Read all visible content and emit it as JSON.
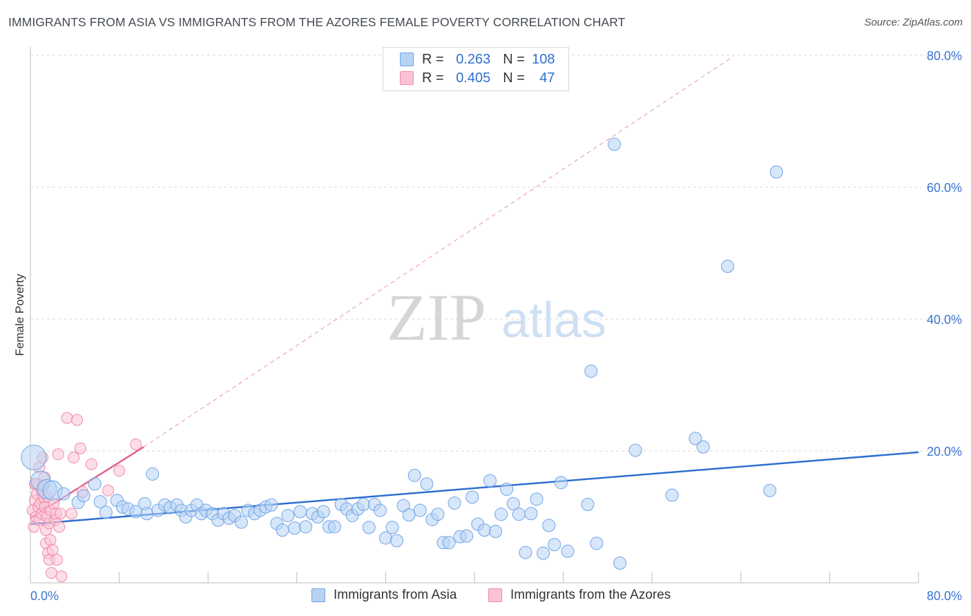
{
  "header": {
    "title": "IMMIGRANTS FROM ASIA VS IMMIGRANTS FROM THE AZORES FEMALE POVERTY CORRELATION CHART",
    "source": "Source: ZipAtlas.com"
  },
  "legend": {
    "rows": [
      {
        "r_label": "R =",
        "r_value": "0.263",
        "n_label": "N =",
        "n_value": "108",
        "color": "#6fa3e6"
      },
      {
        "r_label": "R =",
        "r_value": "0.405",
        "n_label": "N =",
        "n_value": "47",
        "color": "#f08aaa"
      }
    ]
  },
  "bottom_legend": {
    "asia": "Immigrants from Asia",
    "azores": "Immigrants from the Azores"
  },
  "watermark": {
    "zip": "ZIP",
    "atlas": "atlas"
  },
  "colors": {
    "asia_fill": "#b7d3f4",
    "asia_stroke": "#6fa3e6",
    "asia_line": "#2d6fd0",
    "azores_fill": "#f9c3d3",
    "azores_stroke": "#f08aaa",
    "azores_line": "#e06090",
    "axis_text": "#3b75d3"
  },
  "chart_data": {
    "type": "scatter",
    "title": "IMMIGRANTS FROM ASIA VS IMMIGRANTS FROM THE AZORES FEMALE POVERTY CORRELATION CHART",
    "xlabel": "",
    "ylabel": "Female Poverty",
    "xlim": [
      0,
      80
    ],
    "ylim": [
      0,
      80
    ],
    "x_ticks": [
      "0.0%",
      "80.0%"
    ],
    "y_ticks": [
      "20.0%",
      "40.0%",
      "60.0%",
      "80.0%"
    ],
    "y_tick_values": [
      20,
      40,
      60,
      80
    ],
    "grid": true,
    "legend_position": "top-center",
    "series": [
      {
        "name": "Immigrants from Asia",
        "r": 0.263,
        "n": 108,
        "trend": {
          "x": [
            0,
            80
          ],
          "y": [
            8.9,
            19.8
          ],
          "style": "solid"
        },
        "points": [
          [
            0.3,
            19.0,
            3
          ],
          [
            0.9,
            15.5,
            2
          ],
          [
            1.5,
            14.2,
            2
          ],
          [
            2.0,
            14.0,
            2
          ],
          [
            3.0,
            13.5,
            1
          ],
          [
            4.3,
            12.2,
            1
          ],
          [
            4.8,
            13.2,
            1
          ],
          [
            5.8,
            15.0,
            1
          ],
          [
            6.3,
            12.3,
            1
          ],
          [
            6.8,
            10.7,
            1
          ],
          [
            7.8,
            12.5,
            1
          ],
          [
            8.3,
            11.5,
            1
          ],
          [
            8.8,
            11.2,
            1
          ],
          [
            9.5,
            10.8,
            1
          ],
          [
            10.3,
            12.0,
            1
          ],
          [
            10.5,
            10.5,
            1
          ],
          [
            11.0,
            16.5,
            1
          ],
          [
            11.5,
            11.0,
            1
          ],
          [
            12.1,
            11.8,
            1
          ],
          [
            12.6,
            11.4,
            1
          ],
          [
            13.2,
            11.8,
            1
          ],
          [
            13.6,
            11.0,
            1
          ],
          [
            14.0,
            10.0,
            1
          ],
          [
            14.5,
            11.0,
            1
          ],
          [
            15.0,
            11.8,
            1
          ],
          [
            15.4,
            10.5,
            1
          ],
          [
            15.8,
            11.0,
            1
          ],
          [
            16.4,
            10.5,
            1
          ],
          [
            16.9,
            9.5,
            1
          ],
          [
            17.4,
            10.5,
            1
          ],
          [
            17.9,
            9.8,
            1
          ],
          [
            18.4,
            10.2,
            1
          ],
          [
            19.0,
            9.2,
            1
          ],
          [
            19.6,
            11.0,
            1
          ],
          [
            20.2,
            10.5,
            1
          ],
          [
            20.7,
            11.0,
            1
          ],
          [
            21.2,
            11.5,
            1
          ],
          [
            21.7,
            11.8,
            1
          ],
          [
            22.2,
            9.0,
            1
          ],
          [
            22.7,
            8.0,
            1
          ],
          [
            23.2,
            10.2,
            1
          ],
          [
            23.8,
            8.3,
            1
          ],
          [
            24.3,
            10.8,
            1
          ],
          [
            24.8,
            8.5,
            1
          ],
          [
            25.4,
            10.5,
            1
          ],
          [
            25.9,
            10.0,
            1
          ],
          [
            26.4,
            10.8,
            1
          ],
          [
            26.9,
            8.5,
            1
          ],
          [
            27.4,
            8.5,
            1
          ],
          [
            28.0,
            11.9,
            1
          ],
          [
            28.5,
            11.2,
            1
          ],
          [
            29.0,
            10.2,
            1
          ],
          [
            29.5,
            11.2,
            1
          ],
          [
            30.0,
            11.9,
            1
          ],
          [
            30.5,
            8.4,
            1
          ],
          [
            31.0,
            11.9,
            1
          ],
          [
            31.5,
            11.0,
            1
          ],
          [
            32.0,
            6.8,
            1
          ],
          [
            32.6,
            8.4,
            1
          ],
          [
            33.0,
            6.4,
            1
          ],
          [
            33.6,
            11.7,
            1
          ],
          [
            34.1,
            10.3,
            1
          ],
          [
            34.6,
            16.3,
            1
          ],
          [
            35.1,
            11.0,
            1
          ],
          [
            35.7,
            15.0,
            1
          ],
          [
            36.2,
            9.6,
            1
          ],
          [
            36.7,
            10.4,
            1
          ],
          [
            37.2,
            6.1,
            1
          ],
          [
            37.7,
            6.1,
            1
          ],
          [
            38.2,
            12.1,
            1
          ],
          [
            38.7,
            7.0,
            1
          ],
          [
            39.3,
            7.1,
            1
          ],
          [
            39.8,
            13.0,
            1
          ],
          [
            40.3,
            8.9,
            1
          ],
          [
            40.9,
            8.0,
            1
          ],
          [
            41.4,
            15.5,
            1
          ],
          [
            41.9,
            7.8,
            1
          ],
          [
            42.4,
            10.4,
            1
          ],
          [
            42.9,
            14.2,
            1
          ],
          [
            43.5,
            12.0,
            1
          ],
          [
            44.0,
            10.4,
            1
          ],
          [
            44.6,
            4.6,
            1
          ],
          [
            45.1,
            10.5,
            1
          ],
          [
            45.6,
            12.7,
            1
          ],
          [
            46.2,
            4.5,
            1
          ],
          [
            46.7,
            8.7,
            1
          ],
          [
            47.2,
            5.8,
            1
          ],
          [
            47.8,
            15.2,
            1
          ],
          [
            48.4,
            4.8,
            1
          ],
          [
            50.2,
            11.9,
            1
          ],
          [
            51.0,
            6.0,
            1
          ],
          [
            52.6,
            66.5,
            1
          ],
          [
            53.1,
            3.0,
            1
          ],
          [
            54.5,
            20.1,
            1
          ],
          [
            57.8,
            13.3,
            1
          ],
          [
            59.9,
            21.9,
            1
          ],
          [
            60.6,
            20.6,
            1
          ],
          [
            62.8,
            48.0,
            1
          ],
          [
            66.6,
            14.0,
            1
          ],
          [
            67.2,
            62.3,
            1
          ],
          [
            50.5,
            32.1,
            1
          ]
        ]
      },
      {
        "name": "Immigrants from the Azores",
        "r": 0.405,
        "n": 47,
        "trend": {
          "x": [
            0,
            10.2
          ],
          "y": [
            9.8,
            20.6
          ],
          "style": "solid",
          "extended": {
            "x": [
              10.2,
              63.3
            ],
            "y": [
              20.6,
              79.8
            ],
            "style": "dashed"
          }
        },
        "points": [
          [
            0.2,
            11.0
          ],
          [
            0.3,
            8.5
          ],
          [
            0.4,
            12.5
          ],
          [
            0.5,
            10.0
          ],
          [
            0.5,
            15.0
          ],
          [
            0.6,
            13.5
          ],
          [
            0.7,
            11.5
          ],
          [
            0.8,
            17.5
          ],
          [
            0.8,
            9.5
          ],
          [
            0.9,
            12.0
          ],
          [
            1.0,
            14.0
          ],
          [
            1.0,
            10.5
          ],
          [
            1.1,
            19.0
          ],
          [
            1.2,
            13.0
          ],
          [
            1.3,
            11.5
          ],
          [
            1.3,
            16.0
          ],
          [
            1.4,
            6.0
          ],
          [
            1.4,
            8.0
          ],
          [
            1.5,
            10.0
          ],
          [
            1.6,
            4.5
          ],
          [
            1.6,
            13.0
          ],
          [
            1.7,
            3.5
          ],
          [
            1.7,
            9.0
          ],
          [
            1.8,
            6.5
          ],
          [
            1.8,
            11.0
          ],
          [
            1.9,
            1.5
          ],
          [
            2.0,
            5.0
          ],
          [
            2.1,
            12.0
          ],
          [
            2.2,
            9.5
          ],
          [
            2.3,
            10.5
          ],
          [
            2.4,
            3.5
          ],
          [
            2.5,
            19.5
          ],
          [
            2.6,
            8.5
          ],
          [
            2.7,
            10.5
          ],
          [
            2.8,
            1.0
          ],
          [
            3.3,
            25.0
          ],
          [
            3.7,
            10.5
          ],
          [
            3.9,
            19.0
          ],
          [
            4.2,
            24.7
          ],
          [
            4.5,
            20.4
          ],
          [
            4.7,
            13.8
          ],
          [
            5.5,
            18.0
          ],
          [
            7.0,
            14.0
          ],
          [
            8.0,
            17.0
          ],
          [
            9.5,
            21.0
          ],
          [
            0.4,
            15.0
          ],
          [
            1.2,
            14.8
          ]
        ]
      }
    ]
  }
}
